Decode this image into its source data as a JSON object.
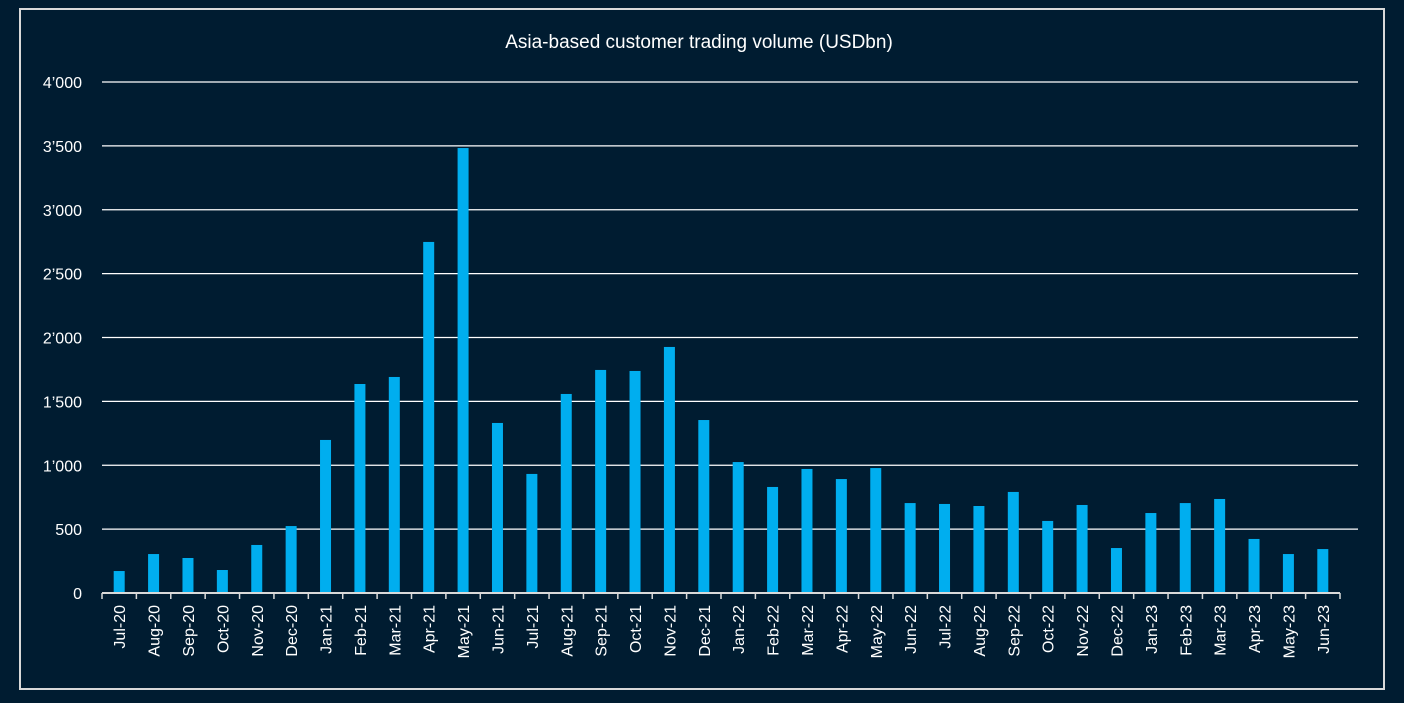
{
  "chart_data": {
    "type": "bar",
    "title": "Asia-based customer trading volume (USDbn)",
    "xlabel": "",
    "ylabel": "",
    "ylim": [
      0,
      4000
    ],
    "yticks": [
      0,
      500,
      1000,
      1500,
      2000,
      2500,
      3000,
      3500,
      4000
    ],
    "ytick_labels": [
      "0",
      "500",
      "1’000",
      "1’500",
      "2’000",
      "2’500",
      "3’000",
      "3’500",
      "4’000"
    ],
    "grid": true,
    "legend": "none",
    "colors": {
      "background": "#001c31",
      "bar": "#00aeef",
      "text": "#ffffff",
      "grid": "#ffffff",
      "frame": "#d9d9d9"
    },
    "categories": [
      "Jul-20",
      "Aug-20",
      "Sep-20",
      "Oct-20",
      "Nov-20",
      "Dec-20",
      "Jan-21",
      "Feb-21",
      "Mar-21",
      "Apr-21",
      "May-21",
      "Jun-21",
      "Jul-21",
      "Aug-21",
      "Sep-21",
      "Oct-21",
      "Nov-21",
      "Dec-21",
      "Jan-22",
      "Feb-22",
      "Mar-22",
      "Apr-22",
      "May-22",
      "Jun-22",
      "Jul-22",
      "Aug-22",
      "Sep-22",
      "Oct-22",
      "Nov-22",
      "Dec-22",
      "Jan-23",
      "Feb-23",
      "Mar-23",
      "Apr-23",
      "May-23",
      "Jun-23"
    ],
    "values": [
      172,
      305,
      274,
      180,
      376,
      524,
      1198,
      1636,
      1691,
      2748,
      3483,
      1331,
      932,
      1558,
      1746,
      1738,
      1926,
      1354,
      1025,
      830,
      971,
      892,
      978,
      704,
      697,
      681,
      791,
      564,
      689,
      352,
      626,
      704,
      736,
      423,
      305,
      344
    ]
  }
}
